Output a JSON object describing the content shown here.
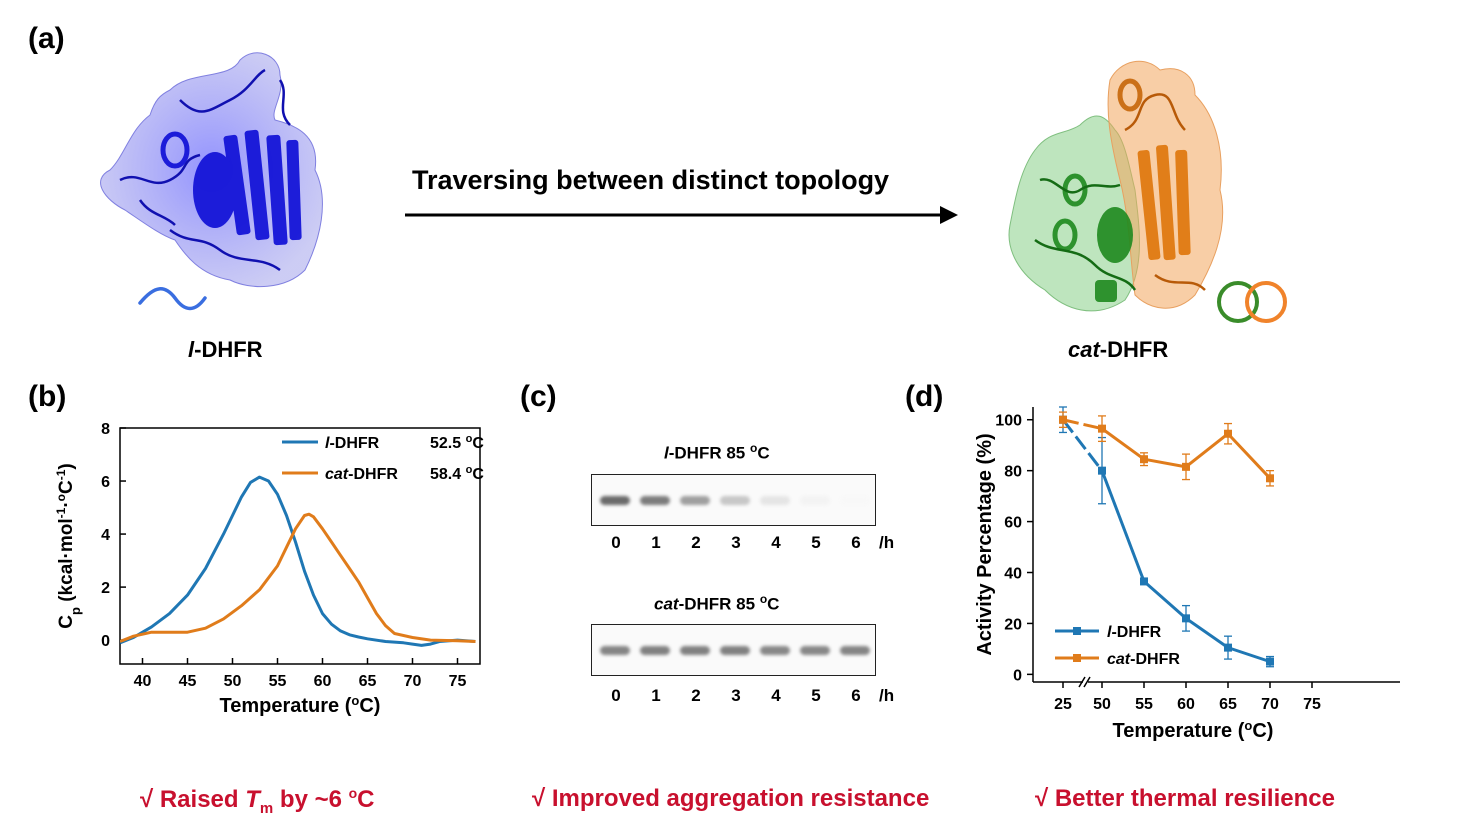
{
  "panel_a": {
    "label": "(a)",
    "arrow_text": "Traversing between distinct topology",
    "left_name_italic": "l",
    "left_name_rest": "-DHFR",
    "right_name_italic": "cat",
    "right_name_rest": "-DHFR",
    "colors": {
      "linear": "#1a1adb",
      "green": "#2e8b2e",
      "orange": "#e8791e"
    }
  },
  "panel_b": {
    "label": "(b)",
    "claim_prefix": "√ Raised ",
    "claim_T": "T",
    "claim_sub": "m",
    "claim_suffix": " by ~6 ",
    "claim_deg": "o",
    "claim_unit": "C"
  },
  "panel_c": {
    "label": "(c)",
    "gel1_title_italic": "l",
    "gel1_title_rest": "-DHFR 85 ",
    "gel2_title_italic": "cat",
    "gel2_title_rest": "-DHFR 85 ",
    "title_deg": "o",
    "title_unit": "C",
    "lanes": [
      "0",
      "1",
      "2",
      "3",
      "4",
      "5",
      "6"
    ],
    "lane_unit": "/h",
    "gel1_intensity": [
      0.85,
      0.75,
      0.55,
      0.32,
      0.15,
      0.07,
      0.04
    ],
    "gel2_intensity": [
      0.7,
      0.72,
      0.72,
      0.72,
      0.68,
      0.68,
      0.7
    ],
    "claim": "√ Improved aggregation resistance"
  },
  "panel_d": {
    "label": "(d)",
    "claim": "√ Better thermal resilience"
  },
  "chart_data": [
    {
      "type": "line",
      "panel": "b",
      "xlabel_main": "Temperature (",
      "xlabel_deg": "o",
      "xlabel_end": "C)",
      "ylabel_main": "C",
      "ylabel_sub": "p",
      "ylabel_rest": " (kcal·mol",
      "ylabel_sup1": "-1",
      "ylabel_mid": "·",
      "ylabel_deg": "o",
      "ylabel_c": "C",
      "ylabel_sup2": "-1",
      "ylabel_end": ")",
      "xlim": [
        37.5,
        77.5
      ],
      "ylim": [
        -0.9,
        8
      ],
      "xticks": [
        40,
        45,
        50,
        55,
        60,
        65,
        70,
        75
      ],
      "yticks": [
        0,
        2,
        4,
        6,
        8
      ],
      "series": [
        {
          "name_italic": "l",
          "name_rest": "-DHFR",
          "tm_label": "52.5 ",
          "tm_deg": "o",
          "tm_unit": "C",
          "color": "#1f77b4",
          "x": [
            37.5,
            39,
            41,
            43,
            45,
            47,
            49,
            50,
            51,
            52,
            53,
            54,
            55,
            56,
            57,
            58,
            59,
            60,
            61,
            62,
            63,
            64,
            65,
            67,
            69,
            70,
            71,
            72,
            73,
            75,
            77
          ],
          "y": [
            -0.1,
            0.1,
            0.5,
            1.0,
            1.7,
            2.7,
            4.0,
            4.7,
            5.4,
            5.95,
            6.15,
            6.0,
            5.5,
            4.7,
            3.7,
            2.6,
            1.7,
            1.0,
            0.6,
            0.35,
            0.2,
            0.12,
            0.05,
            -0.05,
            -0.1,
            -0.15,
            -0.2,
            -0.15,
            -0.05,
            0.0,
            -0.05
          ]
        },
        {
          "name_italic": "cat",
          "name_rest": "-DHFR",
          "tm_label": "58.4 ",
          "tm_deg": "o",
          "tm_unit": "C",
          "color": "#e07c1b",
          "x": [
            37.5,
            39,
            41,
            43,
            45,
            47,
            49,
            51,
            53,
            55,
            56,
            57,
            58,
            58.5,
            59,
            60,
            61,
            62,
            63,
            64,
            65,
            66,
            67,
            68,
            70,
            72,
            75,
            77
          ],
          "y": [
            -0.05,
            0.15,
            0.3,
            0.3,
            0.3,
            0.45,
            0.8,
            1.3,
            1.9,
            2.8,
            3.5,
            4.2,
            4.7,
            4.75,
            4.65,
            4.2,
            3.7,
            3.2,
            2.7,
            2.2,
            1.6,
            1.0,
            0.55,
            0.25,
            0.1,
            0.0,
            -0.02,
            -0.05
          ]
        }
      ]
    },
    {
      "type": "line",
      "panel": "d",
      "xlabel_main": "Temperature (",
      "xlabel_deg": "o",
      "xlabel_end": "C)",
      "ylabel": "Activity Percentage (%)",
      "xticks": [
        "25",
        "50",
        "55",
        "60",
        "65",
        "70",
        "75"
      ],
      "ylim": [
        -3,
        105
      ],
      "yticks": [
        0,
        20,
        40,
        60,
        80,
        100
      ],
      "x_break_between": [
        "25",
        "50"
      ],
      "series": [
        {
          "name_italic": "l",
          "name_rest": "-DHFR",
          "color": "#1f77b4",
          "x": [
            25,
            50,
            55,
            60,
            65,
            70
          ],
          "y": [
            100,
            80,
            36.5,
            22,
            10.5,
            5
          ],
          "err": [
            5,
            13,
            1,
            5,
            4.5,
            2
          ]
        },
        {
          "name_italic": "cat",
          "name_rest": "-DHFR",
          "color": "#e07c1b",
          "x": [
            25,
            50,
            55,
            60,
            65,
            70
          ],
          "y": [
            100,
            96.5,
            84.5,
            81.5,
            94.5,
            77
          ],
          "err": [
            3,
            5,
            2.5,
            5,
            4,
            3
          ]
        }
      ]
    }
  ]
}
